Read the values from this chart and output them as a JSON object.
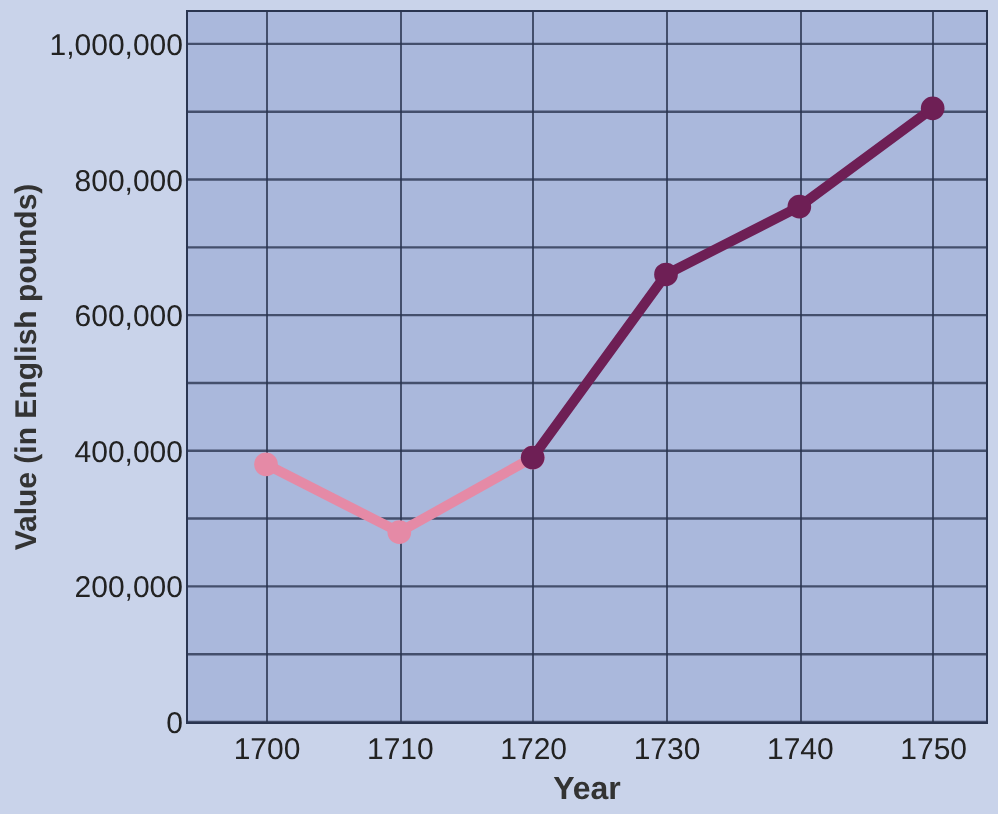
{
  "chart_data": {
    "type": "line",
    "xlabel": "Year",
    "ylabel": "Value (in English pounds)",
    "series": [
      {
        "color": "#e58aa6",
        "x": [
          1700,
          1710,
          1720
        ],
        "values": [
          380000,
          280000,
          390000
        ]
      },
      {
        "color": "#6e1f55",
        "x": [
          1720,
          1730,
          1740,
          1750
        ],
        "values": [
          390000,
          660000,
          760000,
          905000
        ]
      }
    ],
    "xlim": [
      1694,
      1754
    ],
    "xticks": [
      1700,
      1710,
      1720,
      1730,
      1740,
      1750
    ],
    "ylim": [
      0,
      1050000
    ],
    "yticks": [
      0,
      {
        "value": 100000,
        "label": null
      },
      {
        "value": 200000,
        "label": "200,000"
      },
      {
        "value": 300000,
        "label": null
      },
      {
        "value": 400000,
        "label": "400,000"
      },
      {
        "value": 500000,
        "label": null
      },
      {
        "value": 600000,
        "label": "600,000"
      },
      {
        "value": 700000,
        "label": null
      },
      {
        "value": 800000,
        "label": "800,000"
      },
      {
        "value": 900000,
        "label": null
      },
      {
        "value": 1000000,
        "label": "1,000,000"
      }
    ],
    "grid": true,
    "marker": "circle",
    "line_style": "solid"
  }
}
